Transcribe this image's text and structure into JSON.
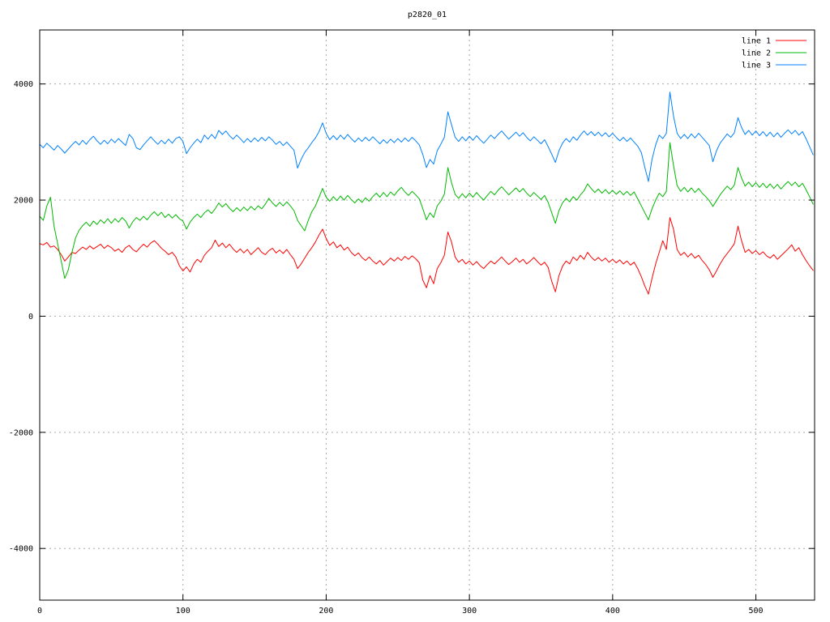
{
  "chart_data": {
    "type": "line",
    "title": "p2820_01",
    "xlabel": "",
    "ylabel": "",
    "xlim": [
      0,
      541
    ],
    "ylim": [
      -4890,
      4930
    ],
    "xticks": [
      0,
      100,
      200,
      300,
      400,
      500
    ],
    "yticks": [
      -4000,
      -2000,
      0,
      2000,
      4000
    ],
    "grid": true,
    "grid_style": "dotted",
    "legend_position": "top-right-inside",
    "background_color": "#ffffff",
    "border_color": "#000000",
    "grid_color": "#a8a8a8",
    "x_start": 0,
    "x_step": 2.5,
    "series": [
      {
        "name": "line 1",
        "color": "#ff0000",
        "values": [
          1250,
          1230,
          1270,
          1190,
          1210,
          1150,
          1060,
          950,
          1020,
          1100,
          1080,
          1140,
          1190,
          1150,
          1210,
          1160,
          1200,
          1240,
          1170,
          1220,
          1180,
          1120,
          1160,
          1100,
          1180,
          1220,
          1150,
          1110,
          1180,
          1240,
          1190,
          1260,
          1300,
          1240,
          1170,
          1120,
          1060,
          1100,
          1020,
          870,
          780,
          850,
          760,
          900,
          980,
          930,
          1050,
          1120,
          1180,
          1310,
          1200,
          1260,
          1180,
          1240,
          1160,
          1100,
          1160,
          1090,
          1150,
          1060,
          1120,
          1180,
          1100,
          1060,
          1130,
          1170,
          1090,
          1140,
          1080,
          1150,
          1060,
          980,
          820,
          900,
          1000,
          1100,
          1180,
          1280,
          1400,
          1500,
          1340,
          1220,
          1280,
          1180,
          1230,
          1140,
          1190,
          1100,
          1040,
          1090,
          1010,
          960,
          1020,
          950,
          900,
          960,
          880,
          940,
          1000,
          950,
          1010,
          960,
          1030,
          980,
          1040,
          990,
          920,
          620,
          490,
          700,
          560,
          820,
          920,
          1050,
          1450,
          1280,
          1020,
          930,
          980,
          900,
          950,
          880,
          940,
          870,
          820,
          890,
          950,
          900,
          960,
          1020,
          950,
          890,
          940,
          1000,
          930,
          980,
          900,
          950,
          1010,
          940,
          880,
          930,
          840,
          600,
          420,
          700,
          860,
          950,
          900,
          1020,
          960,
          1050,
          980,
          1100,
          1020,
          960,
          1010,
          950,
          1000,
          930,
          980,
          920,
          970,
          900,
          950,
          880,
          930,
          820,
          680,
          520,
          380,
          650,
          900,
          1100,
          1300,
          1150,
          1700,
          1500,
          1150,
          1050,
          1100,
          1020,
          1080,
          1000,
          1050,
          960,
          890,
          800,
          670,
          780,
          900,
          1000,
          1080,
          1160,
          1250,
          1550,
          1300,
          1100,
          1150,
          1080,
          1130,
          1060,
          1110,
          1040,
          1000,
          1060,
          980,
          1040,
          1100,
          1160,
          1230,
          1120,
          1180,
          1060,
          960,
          870,
          790
        ]
      },
      {
        "name": "line 2",
        "color": "#00b800",
        "values": [
          1720,
          1650,
          1900,
          2050,
          1550,
          1250,
          950,
          650,
          800,
          1100,
          1350,
          1480,
          1560,
          1620,
          1550,
          1640,
          1580,
          1660,
          1600,
          1680,
          1600,
          1680,
          1620,
          1700,
          1640,
          1520,
          1630,
          1700,
          1650,
          1720,
          1660,
          1740,
          1800,
          1730,
          1790,
          1700,
          1760,
          1690,
          1750,
          1680,
          1640,
          1500,
          1620,
          1700,
          1760,
          1700,
          1780,
          1830,
          1770,
          1850,
          1950,
          1880,
          1940,
          1860,
          1800,
          1870,
          1810,
          1880,
          1820,
          1890,
          1830,
          1900,
          1850,
          1930,
          2030,
          1950,
          1890,
          1960,
          1900,
          1970,
          1900,
          1820,
          1650,
          1560,
          1470,
          1650,
          1800,
          1900,
          2050,
          2200,
          2050,
          1980,
          2060,
          1990,
          2070,
          2000,
          2080,
          2010,
          1950,
          2020,
          1960,
          2040,
          1980,
          2060,
          2120,
          2050,
          2130,
          2060,
          2140,
          2080,
          2160,
          2220,
          2140,
          2080,
          2150,
          2090,
          2020,
          1850,
          1660,
          1780,
          1700,
          1900,
          1980,
          2100,
          2560,
          2300,
          2100,
          2030,
          2110,
          2040,
          2120,
          2050,
          2130,
          2060,
          2000,
          2080,
          2150,
          2090,
          2170,
          2230,
          2160,
          2090,
          2150,
          2210,
          2140,
          2200,
          2120,
          2060,
          2130,
          2070,
          2010,
          2080,
          1960,
          1780,
          1600,
          1820,
          1950,
          2030,
          1970,
          2060,
          2000,
          2090,
          2160,
          2280,
          2200,
          2130,
          2190,
          2120,
          2180,
          2110,
          2170,
          2100,
          2160,
          2090,
          2150,
          2080,
          2140,
          2020,
          1900,
          1780,
          1660,
          1850,
          2000,
          2120,
          2060,
          2150,
          2990,
          2600,
          2250,
          2150,
          2220,
          2140,
          2210,
          2130,
          2200,
          2120,
          2060,
          1990,
          1890,
          1990,
          2090,
          2170,
          2240,
          2180,
          2260,
          2560,
          2380,
          2240,
          2310,
          2230,
          2300,
          2220,
          2290,
          2210,
          2280,
          2200,
          2270,
          2190,
          2260,
          2320,
          2250,
          2310,
          2230,
          2290,
          2180,
          2060,
          1930
        ]
      },
      {
        "name": "line 3",
        "color": "#0080ff",
        "values": [
          2960,
          2900,
          2980,
          2920,
          2860,
          2940,
          2880,
          2810,
          2880,
          2950,
          3010,
          2950,
          3030,
          2960,
          3040,
          3100,
          3020,
          2960,
          3030,
          2970,
          3050,
          2990,
          3060,
          3000,
          2940,
          3130,
          3060,
          2900,
          2870,
          2950,
          3020,
          3090,
          3020,
          2960,
          3030,
          2970,
          3050,
          2980,
          3060,
          3090,
          3010,
          2800,
          2900,
          2980,
          3050,
          2990,
          3120,
          3050,
          3130,
          3060,
          3200,
          3130,
          3190,
          3110,
          3050,
          3120,
          3060,
          2990,
          3060,
          3000,
          3070,
          3010,
          3080,
          3020,
          3090,
          3030,
          2960,
          3010,
          2940,
          3000,
          2930,
          2860,
          2550,
          2700,
          2820,
          2900,
          2990,
          3070,
          3180,
          3330,
          3150,
          3040,
          3110,
          3040,
          3120,
          3050,
          3130,
          3060,
          3000,
          3070,
          3010,
          3080,
          3020,
          3090,
          3030,
          2970,
          3040,
          2980,
          3050,
          2990,
          3060,
          3000,
          3070,
          3010,
          3080,
          3020,
          2950,
          2780,
          2560,
          2700,
          2620,
          2850,
          2960,
          3080,
          3520,
          3300,
          3080,
          3010,
          3090,
          3020,
          3100,
          3030,
          3110,
          3040,
          2980,
          3050,
          3120,
          3060,
          3130,
          3190,
          3120,
          3050,
          3110,
          3170,
          3100,
          3160,
          3080,
          3020,
          3090,
          3030,
          2970,
          3040,
          2920,
          2790,
          2650,
          2850,
          2980,
          3060,
          3000,
          3090,
          3030,
          3120,
          3190,
          3120,
          3180,
          3110,
          3170,
          3100,
          3160,
          3090,
          3150,
          3080,
          3020,
          3080,
          3010,
          3070,
          3000,
          2930,
          2820,
          2560,
          2320,
          2700,
          2950,
          3120,
          3060,
          3150,
          3860,
          3450,
          3150,
          3060,
          3130,
          3060,
          3140,
          3070,
          3150,
          3080,
          3010,
          2940,
          2660,
          2850,
          2980,
          3060,
          3140,
          3080,
          3160,
          3420,
          3250,
          3130,
          3200,
          3120,
          3190,
          3110,
          3180,
          3100,
          3170,
          3090,
          3160,
          3080,
          3150,
          3210,
          3140,
          3200,
          3120,
          3180,
          3060,
          2920,
          2780
        ]
      }
    ]
  }
}
